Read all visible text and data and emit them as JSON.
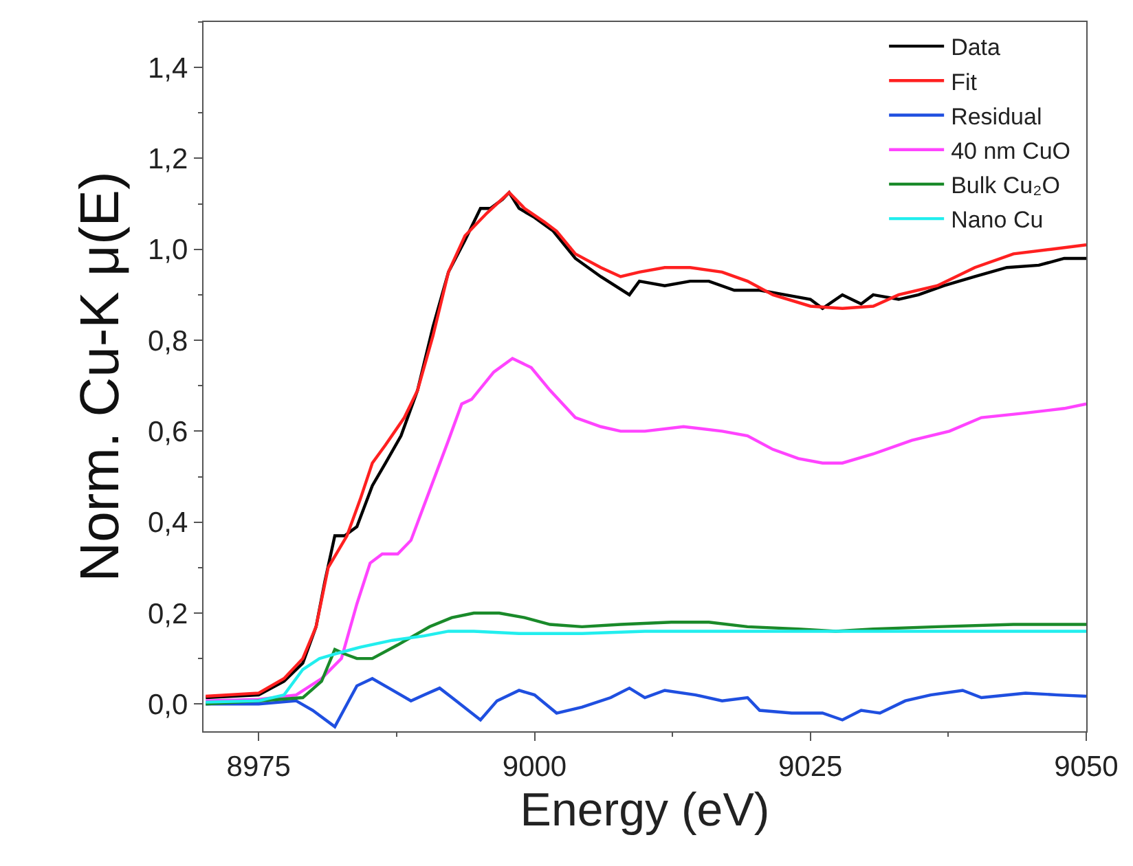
{
  "chart_data": {
    "type": "line",
    "xlabel": "Energy (eV)",
    "ylabel": "Norm. Cu-K μ(E)",
    "xlim": [
      8970,
      9050
    ],
    "xticks": [
      8975,
      9000,
      9025,
      9050
    ],
    "ylim": [
      -0.06,
      1.5
    ],
    "yticks": [
      {
        "value": 0,
        "label": "0,0"
      },
      {
        "value": 0.2,
        "label": "0,2"
      },
      {
        "value": 0.4,
        "label": "0,4"
      },
      {
        "value": 0.6,
        "label": "0,6"
      },
      {
        "value": 0.8,
        "label": "0,8"
      },
      {
        "value": 1.0,
        "label": "1,0"
      },
      {
        "value": 1.2,
        "label": "1,2"
      },
      {
        "value": 1.4,
        "label": "1,4"
      }
    ],
    "legend": "top right",
    "marker": "none",
    "line_style": "solid",
    "series": [
      {
        "name": "Data",
        "color": "#000000",
        "x": [
          8970.2,
          8975,
          8977.3,
          8979,
          8980.2,
          8981,
          8981.9,
          8982.8,
          8983.9,
          8985.3,
          8986.5,
          8987.9,
          8989.4,
          8990.8,
          8992.2,
          8993.7,
          8995.1,
          8996,
          8997.1,
          8997.7,
          8998.6,
          9000,
          9001.7,
          9003.7,
          9006,
          9008.6,
          9009.5,
          9011.8,
          9014.1,
          9015.8,
          9018.1,
          9020.4,
          9022.7,
          9025,
          9026.1,
          9027.9,
          9029.6,
          9030.7,
          9033,
          9034.8,
          9037.1,
          9039.9,
          9042.8,
          9045.7,
          9048,
          9050
        ],
        "values": [
          0.014,
          0.02,
          0.05,
          0.09,
          0.17,
          0.27,
          0.37,
          0.37,
          0.39,
          0.48,
          0.53,
          0.59,
          0.69,
          0.83,
          0.95,
          1.02,
          1.09,
          1.09,
          1.11,
          1.125,
          1.09,
          1.07,
          1.04,
          0.98,
          0.94,
          0.9,
          0.93,
          0.92,
          0.93,
          0.93,
          0.91,
          0.91,
          0.9,
          0.89,
          0.87,
          0.9,
          0.88,
          0.9,
          0.89,
          0.9,
          0.92,
          0.94,
          0.96,
          0.965,
          0.98,
          0.98
        ]
      },
      {
        "name": "Fit",
        "color": "#ff2020",
        "x": [
          8970.2,
          8975,
          8977.3,
          8979,
          8980.2,
          8981.3,
          8983,
          8984.2,
          8985.3,
          8986.5,
          8988.2,
          8989.4,
          8990.8,
          8992.2,
          8993.7,
          8995.7,
          8997.7,
          8999.1,
          9000.9,
          9002,
          9003.7,
          9006,
          9007.8,
          9009.5,
          9011.8,
          9014.1,
          9017,
          9019.3,
          9021.6,
          9025,
          9027.9,
          9030.7,
          9033,
          9036.5,
          9039.9,
          9043.4,
          9046.8,
          9050
        ],
        "values": [
          0.017,
          0.024,
          0.056,
          0.1,
          0.17,
          0.3,
          0.37,
          0.45,
          0.53,
          0.57,
          0.63,
          0.69,
          0.81,
          0.95,
          1.03,
          1.08,
          1.125,
          1.09,
          1.06,
          1.04,
          0.99,
          0.96,
          0.94,
          0.95,
          0.96,
          0.96,
          0.95,
          0.93,
          0.9,
          0.875,
          0.87,
          0.875,
          0.9,
          0.92,
          0.96,
          0.99,
          1.0,
          1.01
        ]
      },
      {
        "name": "Residual",
        "color": "#1f4fe0",
        "x": [
          8970.2,
          8975,
          8978.4,
          8979.9,
          8981.9,
          8983.9,
          8985.3,
          8986.8,
          8988.8,
          8990,
          8991.4,
          8992.9,
          8995.1,
          8996.6,
          8998.6,
          9000,
          9002,
          9004.3,
          9006.9,
          9008.6,
          9010,
          9011.8,
          9014.6,
          9017,
          9019.3,
          9020.4,
          9023.3,
          9026.1,
          9027.9,
          9029.6,
          9031.3,
          9033.6,
          9035.9,
          9038.8,
          9040.5,
          9044.5,
          9047.4,
          9050
        ],
        "values": [
          0.0,
          0.0,
          0.007,
          -0.014,
          -0.05,
          0.04,
          0.056,
          0.035,
          0.007,
          0.02,
          0.035,
          0.007,
          -0.035,
          0.007,
          0.03,
          0.02,
          -0.02,
          -0.007,
          0.014,
          0.035,
          0.014,
          0.03,
          0.02,
          0.007,
          0.014,
          -0.014,
          -0.02,
          -0.02,
          -0.035,
          -0.014,
          -0.02,
          0.007,
          0.02,
          0.03,
          0.014,
          0.024,
          0.02,
          0.017
        ]
      },
      {
        "name": "40 nm CuO",
        "color": "#ff44ff",
        "x": [
          8970.2,
          8975,
          8978.4,
          8980.7,
          8982.5,
          8983.9,
          8985.1,
          8986.2,
          8987.6,
          8988.8,
          8990.5,
          8992.2,
          8993.4,
          8994.3,
          8996.3,
          8998,
          8999.7,
          9001.4,
          9003.7,
          9006,
          9007.8,
          9010,
          9013.5,
          9017,
          9019.3,
          9021.6,
          9023.9,
          9026.1,
          9027.9,
          9030.7,
          9034.2,
          9037.6,
          9040.5,
          9044.5,
          9048,
          9050
        ],
        "values": [
          0.007,
          0.01,
          0.02,
          0.056,
          0.1,
          0.22,
          0.31,
          0.33,
          0.33,
          0.36,
          0.47,
          0.58,
          0.66,
          0.67,
          0.73,
          0.76,
          0.74,
          0.69,
          0.63,
          0.61,
          0.6,
          0.6,
          0.61,
          0.6,
          0.59,
          0.56,
          0.54,
          0.53,
          0.53,
          0.55,
          0.58,
          0.6,
          0.63,
          0.64,
          0.65,
          0.66
        ]
      },
      {
        "name": "Bulk Cu₂O",
        "color": "#1a8a2a",
        "x": [
          8970.2,
          8975,
          8979,
          8980.7,
          8981.9,
          8982.8,
          8983.9,
          8985.3,
          8987.6,
          8990.5,
          8992.5,
          8994.5,
          8996.8,
          8999.1,
          9001.4,
          9004.3,
          9007.8,
          9012.4,
          9015.8,
          9019.3,
          9023.9,
          9027.3,
          9030.7,
          9036.5,
          9043.4,
          9050
        ],
        "values": [
          0.0,
          0.007,
          0.014,
          0.05,
          0.12,
          0.11,
          0.1,
          0.1,
          0.13,
          0.17,
          0.19,
          0.2,
          0.2,
          0.19,
          0.175,
          0.17,
          0.175,
          0.18,
          0.18,
          0.17,
          0.165,
          0.16,
          0.165,
          0.17,
          0.175,
          0.175
        ]
      },
      {
        "name": "Nano Cu",
        "color": "#22eeee",
        "x": [
          8970.2,
          8975,
          8977.3,
          8979,
          8980.5,
          8981.9,
          8984.2,
          8987.1,
          8990,
          8992.2,
          8994.5,
          8998.6,
          9004.3,
          9010,
          9021.6,
          9033,
          9050
        ],
        "values": [
          0.004,
          0.007,
          0.02,
          0.076,
          0.1,
          0.11,
          0.125,
          0.14,
          0.15,
          0.16,
          0.16,
          0.155,
          0.155,
          0.16,
          0.16,
          0.16,
          0.16
        ]
      }
    ]
  }
}
